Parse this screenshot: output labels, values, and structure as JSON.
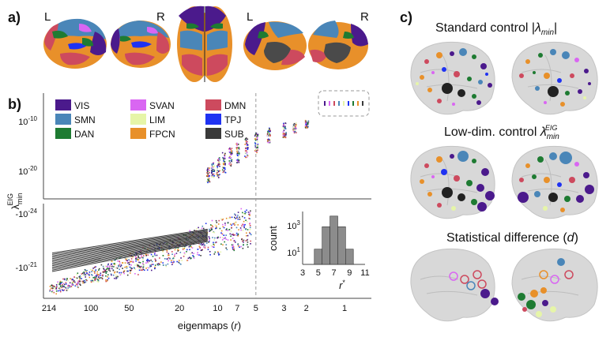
{
  "panel_labels": {
    "a": "a)",
    "b": "b)",
    "c": "c)"
  },
  "panel_a": {
    "hemisphere_labels": [
      "L",
      "R",
      "L",
      "R"
    ]
  },
  "panel_c": {
    "titles": [
      "Standard control |λ",
      "Low-dim. control λ",
      "Statistical difference (d)"
    ],
    "title_parts": {
      "standard_prefix": "Standard control |",
      "lambda": "λ",
      "min": "min",
      "bar": "|",
      "lowdim_prefix": "Low-dim. control ",
      "eig": "EIG",
      "stat_prefix": "Statistical difference (",
      "d": "d",
      "close": ")"
    }
  },
  "chart_data": [
    {
      "type": "scatter",
      "title": "",
      "xlabel": "eigenmaps (r)",
      "xlabel_parts": {
        "text": "eigenmaps (",
        "var": "r",
        "close": ")"
      },
      "ylabel": "λ_min^EIG",
      "ylabel_parts": {
        "lambda": "λ",
        "sub": "min",
        "sup": "EIG"
      },
      "x_tick_labels": [
        "214",
        "100",
        "50",
        "20",
        "10",
        "7",
        "5",
        "3",
        "2",
        "1"
      ],
      "x_tick_values": [
        214,
        100,
        50,
        20,
        10,
        7,
        5,
        3,
        2,
        1
      ],
      "x_scale": "log-reversed",
      "vline_at": 5,
      "upper_y_tick_labels": [
        "10^-10",
        "10^-20"
      ],
      "upper_y_ticks": [
        {
          "base": "10",
          "exp": "-10",
          "value": -10
        },
        {
          "base": "10",
          "exp": "-20",
          "value": -20
        }
      ],
      "lower_y_ticks": [
        {
          "base": "-10",
          "exp": "-24",
          "value": -24
        },
        {
          "base": "-10",
          "exp": "-21",
          "value": -21
        }
      ],
      "lower_y_tick_labels": [
        "-10^-24",
        "-10^-21"
      ],
      "legend": [
        {
          "name": "VIS",
          "color": "#4b1a8c"
        },
        {
          "name": "SVAN",
          "color": "#d966f2"
        },
        {
          "name": "DMN",
          "color": "#cd4a5e"
        },
        {
          "name": "SMN",
          "color": "#4a86b8"
        },
        {
          "name": "LIM",
          "color": "#e6f5a8"
        },
        {
          "name": "TPJ",
          "color": "#1f32f2"
        },
        {
          "name": "DAN",
          "color": "#1e7b32"
        },
        {
          "name": "FPCN",
          "color": "#e8902a"
        },
        {
          "name": "SUB",
          "color": "#3a3a3a"
        }
      ],
      "series_positive_columns": [
        {
          "r": 12,
          "log_min": -22,
          "log_max": -19
        },
        {
          "r": 11,
          "log_min": -21,
          "log_max": -18
        },
        {
          "r": 10,
          "log_min": -21,
          "log_max": -17
        },
        {
          "r": 9,
          "log_min": -20,
          "log_max": -16
        },
        {
          "r": 8,
          "log_min": -19,
          "log_max": -15
        },
        {
          "r": 7,
          "log_min": -18,
          "log_max": -14
        },
        {
          "r": 6,
          "log_min": -17,
          "log_max": -13
        },
        {
          "r": 5,
          "log_min": -16,
          "log_max": -12
        },
        {
          "r": 4,
          "log_min": -14,
          "log_max": -11
        },
        {
          "r": 3,
          "log_min": -13,
          "log_max": -10
        },
        {
          "r": 2.5,
          "log_min": -12,
          "log_max": -10
        },
        {
          "r": 2,
          "log_min": -11,
          "log_max": -9.5
        },
        {
          "r": 1,
          "log_min": -7,
          "log_max": -7
        }
      ]
    },
    {
      "type": "bar",
      "title": "",
      "xlabel": "r*",
      "xlabel_parts": {
        "var": "r",
        "sup": "*"
      },
      "ylabel": "count",
      "categories": [
        "5",
        "6",
        "7",
        "8",
        "9"
      ],
      "values": [
        10,
        300,
        1500,
        300,
        10
      ],
      "x_tick_labels": [
        "3",
        "5",
        "7",
        "9",
        "11"
      ],
      "y_scale": "log",
      "y_ticks": [
        {
          "base": "10",
          "exp": "3",
          "value": 1000
        },
        {
          "base": "10",
          "exp": "1",
          "value": 10
        }
      ],
      "ylim": [
        1,
        3000
      ],
      "xlim": [
        3,
        11
      ]
    }
  ],
  "colors": {
    "brain": "#d8d8d8",
    "brain_fold": "#bdbdbd",
    "dashed": "#999999"
  }
}
